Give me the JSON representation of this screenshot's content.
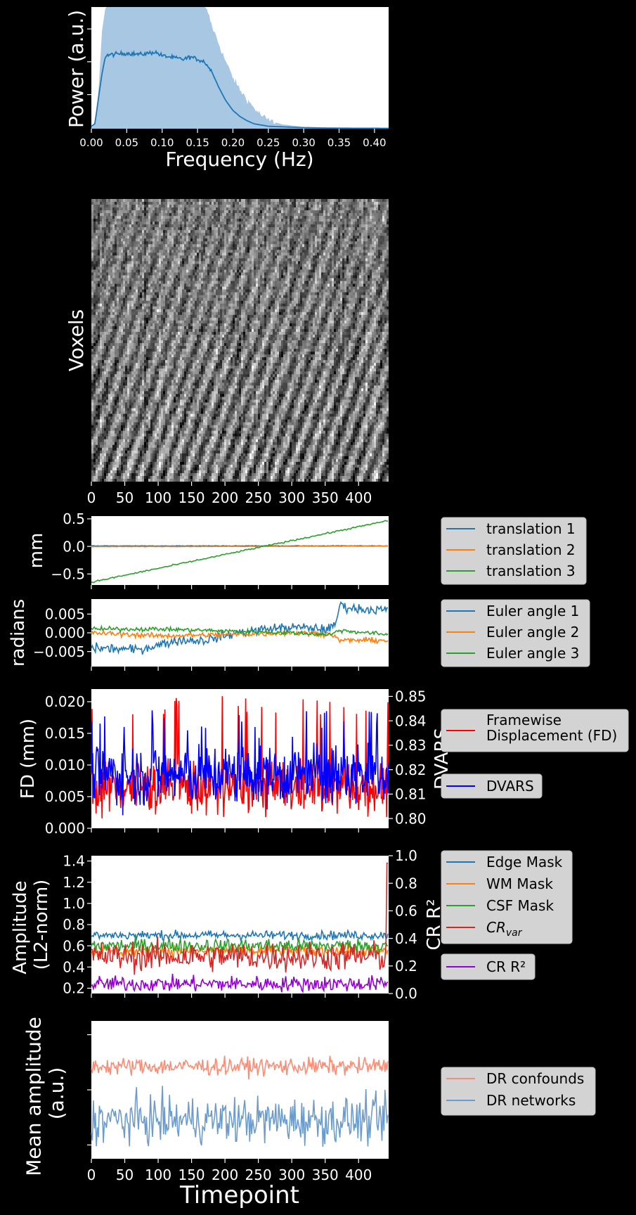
{
  "chart_data": [
    {
      "type": "area",
      "ylabel": "Power (a.u.)",
      "xlabel": "Frequency (Hz)",
      "xlim": [
        0,
        0.42
      ],
      "ylim": [
        0,
        1
      ],
      "x_ticks": [
        "0.00",
        "0.05",
        "0.10",
        "0.15",
        "0.20",
        "0.25",
        "0.30",
        "0.35",
        "0.40"
      ],
      "x_tick_values": [
        0,
        0.05,
        0.1,
        0.15,
        0.2,
        0.25,
        0.3,
        0.35,
        0.4
      ],
      "y_ticks": [
        "",
        "",
        ""
      ],
      "y_tick_values": [
        0.28,
        0.55,
        0.82
      ],
      "envelope": [
        [
          0,
          0.02
        ],
        [
          0.005,
          0.05
        ],
        [
          0.01,
          0.3
        ],
        [
          0.015,
          0.8
        ],
        [
          0.02,
          1.0
        ],
        [
          0.16,
          1.0
        ],
        [
          0.165,
          0.95
        ],
        [
          0.17,
          0.85
        ],
        [
          0.18,
          0.7
        ],
        [
          0.19,
          0.55
        ],
        [
          0.2,
          0.42
        ],
        [
          0.21,
          0.32
        ],
        [
          0.22,
          0.24
        ],
        [
          0.23,
          0.17
        ],
        [
          0.24,
          0.11
        ],
        [
          0.25,
          0.07
        ],
        [
          0.27,
          0.035
        ],
        [
          0.3,
          0.015
        ],
        [
          0.35,
          0.006
        ],
        [
          0.42,
          0.004
        ]
      ],
      "mean_curve": [
        [
          0,
          0.02
        ],
        [
          0.005,
          0.04
        ],
        [
          0.01,
          0.25
        ],
        [
          0.015,
          0.45
        ],
        [
          0.02,
          0.6
        ],
        [
          0.03,
          0.61
        ],
        [
          0.05,
          0.62
        ],
        [
          0.07,
          0.61
        ],
        [
          0.09,
          0.63
        ],
        [
          0.1,
          0.6
        ],
        [
          0.12,
          0.58
        ],
        [
          0.13,
          0.57
        ],
        [
          0.14,
          0.59
        ],
        [
          0.15,
          0.57
        ],
        [
          0.16,
          0.55
        ],
        [
          0.17,
          0.47
        ],
        [
          0.18,
          0.34
        ],
        [
          0.19,
          0.23
        ],
        [
          0.2,
          0.15
        ],
        [
          0.21,
          0.1
        ],
        [
          0.22,
          0.065
        ],
        [
          0.23,
          0.04
        ],
        [
          0.25,
          0.02
        ],
        [
          0.3,
          0.008
        ],
        [
          0.35,
          0.004
        ],
        [
          0.42,
          0.003
        ]
      ],
      "colors": {
        "fill": "#a7c7e3",
        "line": "#1f77b4"
      }
    },
    {
      "type": "heatmap",
      "ylabel": "Voxels",
      "xlim": [
        0,
        445
      ],
      "x_ticks": [
        "0",
        "50",
        "100",
        "150",
        "200",
        "250",
        "300",
        "350",
        "400"
      ],
      "x_tick_values": [
        0,
        50,
        100,
        150,
        200,
        250,
        300,
        350,
        400
      ],
      "colormap": "gray"
    },
    {
      "type": "line",
      "ylabel": "mm",
      "xlim": [
        0,
        445
      ],
      "ylim": [
        -0.7,
        0.55
      ],
      "y_ticks": [
        "0.5",
        "0.0",
        "−0.5"
      ],
      "y_tick_values": [
        0.5,
        0.0,
        -0.5
      ],
      "series": [
        {
          "name": "translation 1",
          "color": "#1f77b4",
          "start": 0.01,
          "end": 0.01,
          "noise": 0.004
        },
        {
          "name": "translation 2",
          "color": "#ff7f0e",
          "start": -0.005,
          "end": 0.005,
          "noise": 0.003
        },
        {
          "name": "translation 3",
          "color": "#2ca02c",
          "start": -0.65,
          "end": 0.47,
          "noise": 0.01
        }
      ],
      "legend": "right"
    },
    {
      "type": "line",
      "ylabel": "radians",
      "xlim": [
        0,
        445
      ],
      "ylim": [
        -0.009,
        0.009
      ],
      "y_ticks": [
        "0.005",
        "0.000",
        "−0.005"
      ],
      "y_tick_values": [
        0.005,
        0.0,
        -0.005
      ],
      "series": [
        {
          "name": "Euler angle 1",
          "color": "#1f77b4",
          "points": [
            [
              0,
              -0.004
            ],
            [
              70,
              -0.0045
            ],
            [
              130,
              -0.002
            ],
            [
              170,
              -0.002
            ],
            [
              220,
              0.0
            ],
            [
              260,
              0.001
            ],
            [
              300,
              0.0015
            ],
            [
              355,
              0.001
            ],
            [
              365,
              0.002
            ],
            [
              372,
              0.0075
            ],
            [
              390,
              0.0065
            ],
            [
              445,
              0.006
            ]
          ],
          "noise": 0.0009
        },
        {
          "name": "Euler angle 2",
          "color": "#ff7f0e",
          "points": [
            [
              0,
              0.0
            ],
            [
              100,
              -0.0008
            ],
            [
              200,
              -0.0005
            ],
            [
              300,
              0.0
            ],
            [
              360,
              -0.0003
            ],
            [
              370,
              -0.002
            ],
            [
              445,
              -0.002
            ]
          ],
          "noise": 0.0005
        },
        {
          "name": "Euler angle 3",
          "color": "#2ca02c",
          "points": [
            [
              0,
              0.001
            ],
            [
              100,
              0.001
            ],
            [
              200,
              0.0005
            ],
            [
              300,
              0.0
            ],
            [
              360,
              -0.0005
            ],
            [
              370,
              0.0007
            ],
            [
              445,
              -0.0005
            ]
          ],
          "noise": 0.0004
        }
      ],
      "legend": "right"
    },
    {
      "type": "line",
      "ylabel": "FD (mm)",
      "ylabel_right": "DVARS",
      "xlim": [
        0,
        445
      ],
      "ylim": [
        0,
        0.022
      ],
      "ylim_right": [
        0.796,
        0.853
      ],
      "y_ticks": [
        "0.000",
        "0.005",
        "0.010",
        "0.015",
        "0.020"
      ],
      "y_tick_values": [
        0,
        0.005,
        0.01,
        0.015,
        0.02
      ],
      "y_ticks_right": [
        "0.80",
        "0.81",
        "0.82",
        "0.83",
        "0.84",
        "0.85"
      ],
      "y_tick_values_right": [
        0.8,
        0.81,
        0.82,
        0.83,
        0.84,
        0.85
      ],
      "series": [
        {
          "name": "Framewise\nDisplacement (FD)",
          "color": "#ff0000",
          "axis": "left",
          "mean": 0.0065,
          "spread": 0.003,
          "min": 0.001,
          "max": 0.021
        },
        {
          "name": "DVARS",
          "color": "#0000ff",
          "axis": "right",
          "mean": 0.818,
          "spread": 0.009,
          "min": 0.801,
          "max": 0.845
        }
      ],
      "legend": "right"
    },
    {
      "type": "line",
      "ylabel": "Amplitude\n(L2-norm)",
      "ylabel_right": "CR R²",
      "xlim": [
        0,
        445
      ],
      "ylim": [
        0.15,
        1.45
      ],
      "ylim_right": [
        0,
        1
      ],
      "y_ticks": [
        "0.2",
        "0.4",
        "0.6",
        "0.8",
        "1.0",
        "1.2",
        "1.4"
      ],
      "y_tick_values": [
        0.2,
        0.4,
        0.6,
        0.8,
        1.0,
        1.2,
        1.4
      ],
      "y_ticks_right": [
        "0.0",
        "0.2",
        "0.4",
        "0.6",
        "0.8",
        "1.0"
      ],
      "y_tick_values_right": [
        0,
        0.2,
        0.4,
        0.6,
        0.8,
        1.0
      ],
      "series": [
        {
          "name": "Edge Mask",
          "color": "#1f77b4",
          "axis": "left",
          "mean": 0.7,
          "spread": 0.03
        },
        {
          "name": "WM Mask",
          "color": "#ff7f0e",
          "axis": "left",
          "mean": 0.55,
          "spread": 0.04
        },
        {
          "name": "CSF Mask",
          "color": "#2ca02c",
          "axis": "left",
          "mean": 0.6,
          "spread": 0.05
        },
        {
          "name": "CR_var",
          "label_main": "CR",
          "label_sub": "var",
          "color": "#d62728",
          "axis": "left",
          "mean": 0.5,
          "spread": 0.1
        },
        {
          "name": "CR R²",
          "color": "#9400d3",
          "axis": "right",
          "mean": 0.07,
          "spread": 0.04
        }
      ],
      "legend": "right"
    },
    {
      "type": "line",
      "ylabel": "Mean amplitude\n(a.u.)",
      "xlabel": "Timepoint",
      "xlim": [
        0,
        445
      ],
      "ylim": [
        0,
        1
      ],
      "x_ticks": [
        "0",
        "50",
        "100",
        "150",
        "200",
        "250",
        "300",
        "350",
        "400"
      ],
      "x_tick_values": [
        0,
        50,
        100,
        150,
        200,
        250,
        300,
        350,
        400
      ],
      "y_ticks": [
        "",
        "",
        ""
      ],
      "y_tick_values": [
        0.1,
        0.5,
        0.9
      ],
      "series": [
        {
          "name": "DR confounds",
          "color": "#fa8d76",
          "mean": 0.67,
          "spread": 0.045
        },
        {
          "name": "DR networks",
          "color": "#6c9ccc",
          "mean": 0.28,
          "spread": 0.12
        }
      ],
      "legend": "right"
    }
  ]
}
